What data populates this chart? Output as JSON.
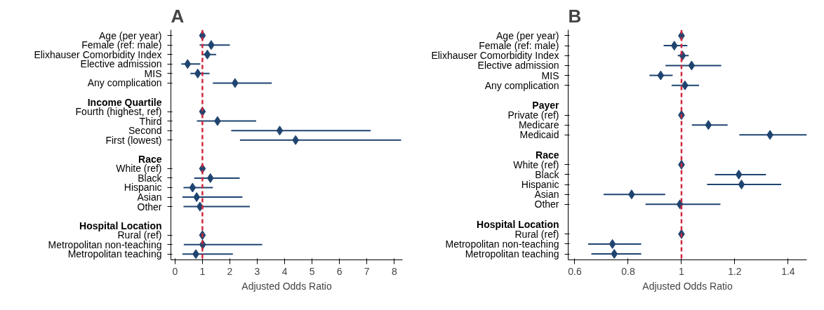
{
  "chart_data": [
    {
      "type": "scatter",
      "title": "A",
      "xlabel": "Adjusted Odds Ratio",
      "orientation": "horizontal",
      "marker": "diamond",
      "grid": false,
      "color": "#1f4470",
      "categories": [
        "Age (per year)",
        "Female (ref: male)",
        "Elixhauser Comorbidity Index",
        "Elective admission",
        "MIS",
        "Any complication",
        null,
        "Income Quartile",
        "Fourth (highest, ref)",
        "Third",
        "Second",
        "First (lowest)",
        null,
        "Race",
        "White (ref)",
        "Black",
        "Hispanic",
        "Asian",
        "Other",
        null,
        "Hospital Location",
        "Rural (ref)",
        "Metropolitan non-teaching",
        "Metropolitan teaching"
      ],
      "values": [
        1.0,
        1.32,
        1.18,
        0.46,
        0.83,
        2.19,
        null,
        null,
        1.0,
        1.55,
        3.82,
        4.4,
        null,
        null,
        1.0,
        1.29,
        0.64,
        0.79,
        0.91,
        null,
        null,
        1.0,
        1.01,
        0.76
      ],
      "errors": [
        null,
        [
          0.9,
          2.0
        ],
        [
          0.97,
          1.5
        ],
        [
          0.23,
          0.92
        ],
        [
          0.56,
          1.26
        ],
        [
          1.38,
          3.53
        ],
        null,
        null,
        null,
        [
          0.8,
          2.96
        ],
        [
          2.05,
          7.14
        ],
        [
          2.37,
          8.25
        ],
        null,
        null,
        null,
        [
          0.7,
          2.36
        ],
        [
          0.31,
          1.38
        ],
        [
          0.27,
          2.46
        ],
        [
          0.31,
          2.73
        ],
        null,
        null,
        null,
        [
          0.32,
          3.18
        ],
        [
          0.27,
          2.11
        ]
      ],
      "xlim": [
        -0.15,
        8.3
      ],
      "xticks": [
        0,
        1,
        2,
        3,
        4,
        5,
        6,
        7,
        8
      ],
      "ref_lines": [
        {
          "axis": "x",
          "value": 1,
          "color": "#d0283c",
          "line_style": "dashed"
        }
      ]
    },
    {
      "type": "scatter",
      "title": "B",
      "xlabel": "Adjusted Odds Ratio",
      "orientation": "horizontal",
      "marker": "diamond",
      "grid": false,
      "color": "#1f4470",
      "categories": [
        "Age (per year)",
        "Female (ref: male)",
        "Elixhauser Comorbidity Index",
        "Elective admission",
        "MIS",
        "Any complication",
        null,
        "Payer",
        "Private (ref)",
        "Medicare",
        "Medicaid",
        null,
        "Race",
        "White (ref)",
        "Black",
        "Hispanic",
        "Asian",
        "Other",
        null,
        "Hospital Location",
        "Rural (ref)",
        "Metropolitan non-teaching",
        "Metropolitan teaching"
      ],
      "values": [
        1.0,
        0.973,
        1.004,
        1.038,
        0.922,
        1.013,
        null,
        null,
        1.0,
        1.101,
        1.332,
        null,
        null,
        1.0,
        1.215,
        1.225,
        0.813,
        0.994,
        null,
        null,
        1.0,
        0.741,
        0.748
      ],
      "errors": [
        null,
        [
          0.933,
          1.022
        ],
        [
          0.986,
          1.027
        ],
        [
          0.94,
          1.149
        ],
        [
          0.88,
          0.967
        ],
        [
          0.963,
          1.066
        ],
        null,
        null,
        null,
        [
          1.039,
          1.173
        ],
        [
          1.217,
          1.47
        ],
        null,
        null,
        null,
        [
          1.125,
          1.317
        ],
        [
          1.096,
          1.374
        ],
        [
          0.708,
          0.939
        ],
        [
          0.865,
          1.146
        ],
        null,
        null,
        null,
        [
          0.65,
          0.849
        ],
        [
          0.662,
          0.849
        ]
      ],
      "xlim": [
        0.575,
        1.47
      ],
      "xticks": [
        0.6,
        0.8,
        1,
        1.2,
        1.4
      ],
      "ref_lines": [
        {
          "axis": "x",
          "value": 1,
          "color": "#d0283c",
          "line_style": "dashed"
        }
      ]
    }
  ]
}
